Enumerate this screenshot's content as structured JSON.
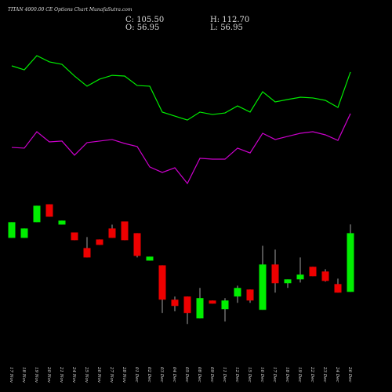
{
  "chart_data": {
    "type": "candlestick",
    "title": "TITAN 4000.00 CE Options Chart MunafaSutra.com",
    "header": {
      "close": "C: 105.50",
      "open": "O: 56.95",
      "high": "H: 112.70",
      "low": "L: 56.95"
    },
    "categories": [
      "17 Nov",
      "18 Nov",
      "19 Nov",
      "20 Nov",
      "21 Nov",
      "24 Nov",
      "25 Nov",
      "26 Nov",
      "27 Nov",
      "28 Nov",
      "01 Dec",
      "02 Dec",
      "03 Dec",
      "04 Dec",
      "05 Dec",
      "08 Dec",
      "09 Dec",
      "11 Dec",
      "12 Dec",
      "15 Dec",
      "16 Dec",
      "17 Dec",
      "18 Dec",
      "19 Dec",
      "22 Dec",
      "23 Dec",
      "24 Dec",
      "26 Dec"
    ],
    "open": [
      101.6,
      101.6,
      114.6,
      129.4,
      112.6,
      106.1,
      93.2,
      100.3,
      109.4,
      115.2,
      105.5,
      82.8,
      78.9,
      50.5,
      53.1,
      35.0,
      49.8,
      42.7,
      53.1,
      58.9,
      42.1,
      79.6,
      64.1,
      67.3,
      77.7,
      73.8,
      63.4,
      56.95
    ],
    "high": [
      114.6,
      109.4,
      128.2,
      129.4,
      115.9,
      106.1,
      102.3,
      100.3,
      112.6,
      115.2,
      105.5,
      86.1,
      78.9,
      53.1,
      53.1,
      60.2,
      49.8,
      51.8,
      62.1,
      58.9,
      95.1,
      91.9,
      67.3,
      85.4,
      77.7,
      75.7,
      67.9,
      112.7
    ],
    "low": [
      101.6,
      101.6,
      114.6,
      119.1,
      112.6,
      99.7,
      85.4,
      95.8,
      101.6,
      99.7,
      85.4,
      82.8,
      39.5,
      40.8,
      30.4,
      35.0,
      47.2,
      32.4,
      47.9,
      47.9,
      42.1,
      56.3,
      60.2,
      64.7,
      69.9,
      65.4,
      56.3,
      56.95
    ],
    "close": [
      114.6,
      109.4,
      128.2,
      119.1,
      115.9,
      99.7,
      85.4,
      95.8,
      101.6,
      99.7,
      86.7,
      86.1,
      50.5,
      45.3,
      39.5,
      51.8,
      47.2,
      49.8,
      60.2,
      49.8,
      79.6,
      64.1,
      67.3,
      71.2,
      69.9,
      66.0,
      56.3,
      105.5
    ],
    "up_color": "#00ee00",
    "down_color": "#ee0000",
    "ylim": [
      26,
      133
    ],
    "series": [
      {
        "color": "#00ee00",
        "axis": "y2",
        "values": [
          80,
          77.7,
          85.9,
          82.3,
          80.9,
          74.1,
          68.2,
          72.3,
          74.5,
          74.1,
          68.6,
          68.2,
          53.2,
          50.9,
          48.6,
          53.2,
          51.8,
          52.7,
          56.8,
          53.2,
          65,
          59.1,
          60.5,
          61.8,
          61.4,
          60,
          55.9,
          76.4
        ]
      },
      {
        "color": "#cc00cc",
        "axis": "y2",
        "values": [
          32.7,
          32.3,
          41.8,
          35.9,
          36.4,
          28.2,
          35.5,
          36.4,
          37.3,
          35,
          33.2,
          21.4,
          18.2,
          20.9,
          11.8,
          26.4,
          25.9,
          25.9,
          32.3,
          29.5,
          40.9,
          37.3,
          39.1,
          40.9,
          41.8,
          40,
          36.8,
          52.3
        ]
      }
    ],
    "y2lim": [
      0,
      100
    ]
  }
}
